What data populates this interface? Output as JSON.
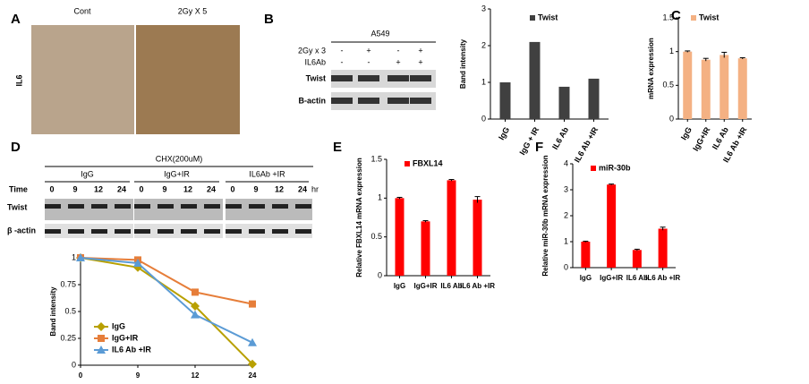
{
  "chart_data": [
    {
      "type": "bar",
      "ylabel": "Band intensity",
      "categories": [
        "IgG",
        "IgG + IR",
        "IL6 Ab",
        "IL6 Ab +IR"
      ],
      "series": [
        {
          "name": "Twist",
          "color": "#404040",
          "values": [
            1.0,
            2.1,
            0.88,
            1.1
          ]
        }
      ],
      "ylim": [
        0,
        3
      ],
      "yticks": [
        0,
        1,
        2,
        3
      ]
    },
    {
      "type": "bar",
      "ylabel": "mRNA expression",
      "categories": [
        "IgG",
        "IgG+IR",
        "IL6 Ab",
        "IL6 Ab +IR"
      ],
      "series": [
        {
          "name": "Twist",
          "color": "#f4b183",
          "values": [
            1.0,
            0.88,
            0.95,
            0.9
          ],
          "errors": [
            0.01,
            0.02,
            0.04,
            0.01
          ]
        }
      ],
      "ylim": [
        0,
        1.5
      ],
      "yticks": [
        0,
        0.5,
        1,
        1.5
      ]
    },
    {
      "type": "line",
      "ylabel": "Band intensity",
      "categories": [
        "0",
        "9",
        "12",
        "24"
      ],
      "series": [
        {
          "name": "IgG",
          "color": "#b8a000",
          "values": [
            1.0,
            0.91,
            0.55,
            0.01
          ]
        },
        {
          "name": "IgG+IR",
          "color": "#e67e3a",
          "values": [
            1.0,
            0.98,
            0.68,
            0.57
          ]
        },
        {
          "name": "IL6 Ab +IR",
          "color": "#5b9bd5",
          "values": [
            1.0,
            0.95,
            0.47,
            0.21
          ]
        }
      ],
      "ylim": [
        0,
        1
      ],
      "yticks": [
        0,
        0.25,
        0.5,
        0.75,
        1
      ],
      "legend": "lower-left"
    },
    {
      "type": "bar",
      "ylabel": "Relative FBXL14  mRNA  expression",
      "categories": [
        "IgG",
        "IgG+IR",
        "IL6 Ab",
        "IL6 Ab +IR"
      ],
      "series": [
        {
          "name": "FBXL14",
          "color": "#ff0000",
          "values": [
            1.0,
            0.7,
            1.23,
            0.98
          ],
          "errors": [
            0.01,
            0.01,
            0.01,
            0.04
          ]
        }
      ],
      "ylim": [
        0,
        1.5
      ],
      "yticks": [
        0,
        0.5,
        1,
        1.5
      ]
    },
    {
      "type": "bar",
      "ylabel": "Relative miR-30b mRNA expression",
      "categories": [
        "IgG",
        "IgG+IR",
        "IL6 Ab",
        "IL6 Ab +IR"
      ],
      "series": [
        {
          "name": "miR-30b",
          "color": "#ff0000",
          "values": [
            1.0,
            3.2,
            0.68,
            1.5
          ],
          "errors": [
            0.02,
            0.02,
            0.03,
            0.06
          ]
        }
      ],
      "ylim": [
        0,
        4
      ],
      "yticks": [
        0,
        1,
        2,
        3,
        4
      ]
    }
  ],
  "figure": {
    "panel_labels": [
      "A",
      "B",
      "C",
      "D",
      "E",
      "F"
    ],
    "A": {
      "columns": [
        "Cont",
        "2Gy X 5"
      ],
      "row": "IL6"
    },
    "B": {
      "cell_line": "A549",
      "conditions": [
        {
          "name": "2Gy x 3",
          "signs": [
            "-",
            "+",
            "-",
            "+"
          ]
        },
        {
          "name": "IL6Ab",
          "signs": [
            "-",
            "-",
            "+",
            "+"
          ]
        }
      ],
      "rows": [
        "Twist",
        "B-actin"
      ]
    },
    "D": {
      "treatment": "CHX(200uM)",
      "groups": [
        "IgG",
        "IgG+IR",
        "IL6Ab +IR"
      ],
      "time_label": "Time",
      "times": [
        "0",
        "9",
        "12",
        "24"
      ],
      "time_unit": "hr",
      "rows": [
        "Twist",
        "β -actin"
      ]
    }
  }
}
